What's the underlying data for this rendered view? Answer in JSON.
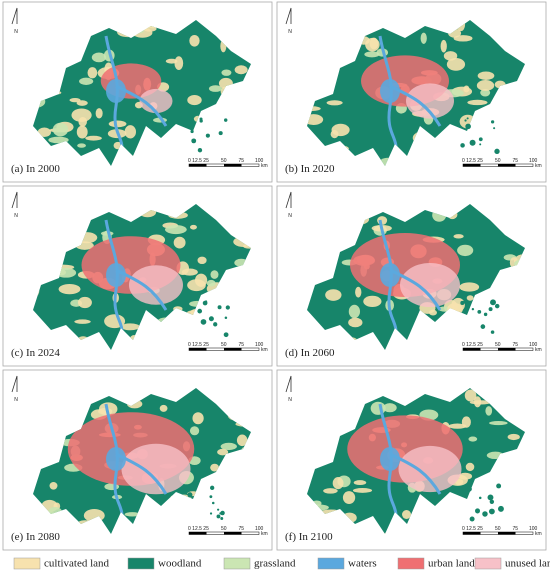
{
  "panels": [
    {
      "label": "(a) In 2000"
    },
    {
      "label": "(b) In 2020"
    },
    {
      "label": "(c) In 2024"
    },
    {
      "label": "(d) In 2060"
    },
    {
      "label": "(e) In 2080"
    },
    {
      "label": "(f) In 2100"
    }
  ],
  "north": "N",
  "scale_bar": {
    "ticks": [
      "0 12.5 25",
      "50",
      "75",
      "100"
    ],
    "unit": "km"
  },
  "legend": [
    {
      "name": "cultivated land",
      "color": "#f7e2ae"
    },
    {
      "name": "woodland",
      "color": "#17856a"
    },
    {
      "name": "grassland",
      "color": "#cbe6b3"
    },
    {
      "name": "waters",
      "color": "#5ba8de"
    },
    {
      "name": "urban land",
      "color": "#ef6f72"
    },
    {
      "name": "unused land",
      "color": "#f7c1c8"
    }
  ]
}
